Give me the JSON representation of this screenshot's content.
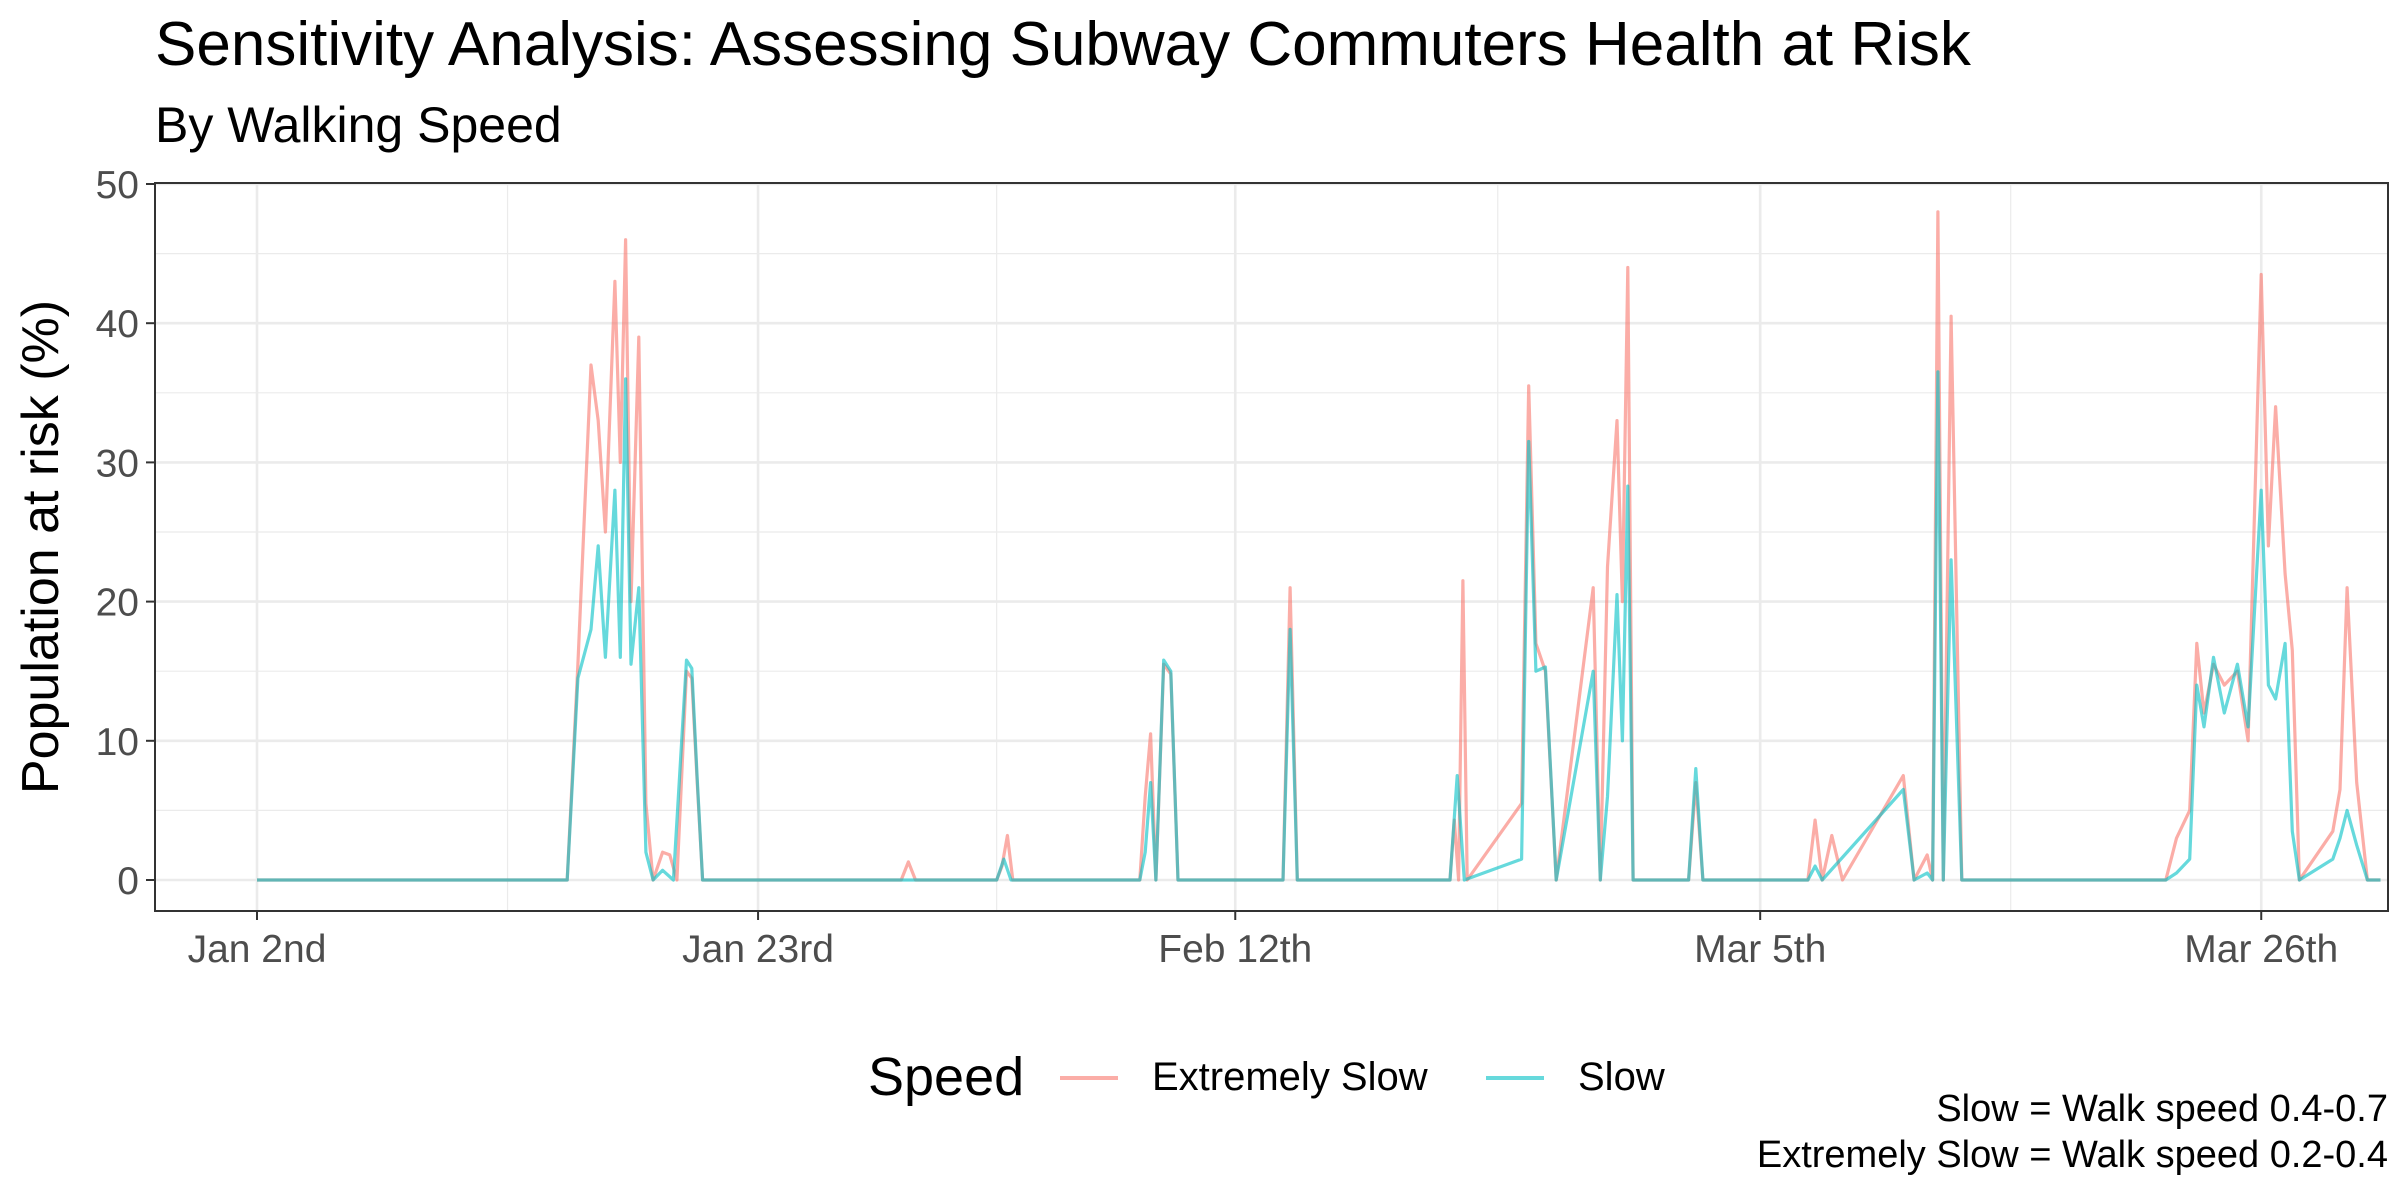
{
  "chart_data": {
    "type": "line",
    "title": "Sensitivity Analysis: Assessing Subway Commuters Health at Risk",
    "subtitle": "By Walking Speed",
    "xlabel": "",
    "ylabel": "Population at risk (%)",
    "x_tick_labels": [
      "Jan 2nd",
      "Jan 23rd",
      "Feb 12th",
      "Mar 5th",
      "Mar 26th"
    ],
    "y_tick_labels": [
      "0",
      "10",
      "20",
      "30",
      "40",
      "50"
    ],
    "ylim": [
      0,
      50
    ],
    "grid": true,
    "legend": {
      "title": "Speed",
      "position": "bottom"
    },
    "captions": [
      "Slow = Walk speed 0.4-0.7",
      "Extremely Slow = Walk speed 0.2-0.4"
    ],
    "colors": {
      "Extremely Slow": "#F8766D",
      "Slow": "#00BFC4"
    },
    "series": [
      {
        "name": "Extremely Slow",
        "points": [
          [
            "2024-01-02",
            0
          ],
          [
            "2024-01-15",
            0
          ],
          [
            "2024-01-15",
            15.5
          ],
          [
            "2024-01-16",
            37.0
          ],
          [
            "2024-01-16",
            33.0
          ],
          [
            "2024-01-16",
            25.0
          ],
          [
            "2024-01-17",
            43.0
          ],
          [
            "2024-01-17",
            30.0
          ],
          [
            "2024-01-17",
            46.0
          ],
          [
            "2024-01-17",
            20.0
          ],
          [
            "2024-01-18",
            39.0
          ],
          [
            "2024-01-18",
            5.5
          ],
          [
            "2024-01-18",
            0
          ],
          [
            "2024-01-19",
            2.0
          ],
          [
            "2024-01-19",
            1.8
          ],
          [
            "2024-01-19",
            0
          ],
          [
            "2024-01-20",
            15.0
          ],
          [
            "2024-01-20",
            14.5
          ],
          [
            "2024-01-20",
            7.0
          ],
          [
            "2024-01-20",
            0
          ],
          [
            "2024-01-29",
            0
          ],
          [
            "2024-01-29",
            1.3
          ],
          [
            "2024-01-29",
            0
          ],
          [
            "2024-02-02",
            0
          ],
          [
            "2024-02-02",
            1.0
          ],
          [
            "2024-02-02",
            3.2
          ],
          [
            "2024-02-02",
            0
          ],
          [
            "2024-02-08",
            0
          ],
          [
            "2024-02-08",
            6.0
          ],
          [
            "2024-02-08",
            10.5
          ],
          [
            "2024-02-08",
            0
          ],
          [
            "2024-02-09",
            15.5
          ],
          [
            "2024-02-09",
            14.8
          ],
          [
            "2024-02-09",
            0
          ],
          [
            "2024-02-14",
            0
          ],
          [
            "2024-02-14",
            21.0
          ],
          [
            "2024-02-14",
            0
          ],
          [
            "2024-02-21",
            0
          ],
          [
            "2024-02-21",
            4.3
          ],
          [
            "2024-02-21",
            0
          ],
          [
            "2024-02-21",
            21.5
          ],
          [
            "2024-02-21",
            0
          ],
          [
            "2024-02-24",
            5.5
          ],
          [
            "2024-02-24",
            35.5
          ],
          [
            "2024-02-24",
            17.0
          ],
          [
            "2024-02-25",
            15.0
          ],
          [
            "2024-02-25",
            0
          ],
          [
            "2024-02-27",
            21.0
          ],
          [
            "2024-02-27",
            0
          ],
          [
            "2024-02-27",
            22.5
          ],
          [
            "2024-02-28",
            33.0
          ],
          [
            "2024-02-28",
            20.0
          ],
          [
            "2024-02-28",
            44.0
          ],
          [
            "2024-02-28",
            0
          ],
          [
            "2024-03-02",
            0
          ],
          [
            "2024-03-02",
            7.0
          ],
          [
            "2024-03-02",
            0
          ],
          [
            "2024-03-07",
            0
          ],
          [
            "2024-03-07",
            4.3
          ],
          [
            "2024-03-07",
            0
          ],
          [
            "2024-03-08",
            3.2
          ],
          [
            "2024-03-08",
            0
          ],
          [
            "2024-03-11",
            7.5
          ],
          [
            "2024-03-11",
            0
          ],
          [
            "2024-03-12",
            1.8
          ],
          [
            "2024-03-12",
            0
          ],
          [
            "2024-03-12",
            48.0
          ],
          [
            "2024-03-12",
            0
          ],
          [
            "2024-03-13",
            40.5
          ],
          [
            "2024-03-13",
            0
          ],
          [
            "2024-03-22",
            0
          ],
          [
            "2024-03-22",
            3.0
          ],
          [
            "2024-03-23",
            5.0
          ],
          [
            "2024-03-23",
            17.0
          ],
          [
            "2024-03-23",
            12.0
          ],
          [
            "2024-03-24",
            15.5
          ],
          [
            "2024-03-24",
            14.0
          ],
          [
            "2024-03-25",
            15.0
          ],
          [
            "2024-03-25",
            10.0
          ],
          [
            "2024-03-26",
            43.5
          ],
          [
            "2024-03-26",
            24.0
          ],
          [
            "2024-03-26",
            34.0
          ],
          [
            "2024-03-27",
            22.0
          ],
          [
            "2024-03-27",
            16.5
          ],
          [
            "2024-03-27",
            0
          ],
          [
            "2024-03-29",
            3.5
          ],
          [
            "2024-03-29",
            6.5
          ],
          [
            "2024-03-29",
            21.0
          ],
          [
            "2024-03-30",
            7.0
          ],
          [
            "2024-03-30",
            0
          ],
          [
            "2024-03-31",
            0
          ]
        ]
      },
      {
        "name": "Slow",
        "points": [
          [
            "2024-01-02",
            0
          ],
          [
            "2024-01-15",
            0
          ],
          [
            "2024-01-15",
            14.5
          ],
          [
            "2024-01-16",
            18.0
          ],
          [
            "2024-01-16",
            24.0
          ],
          [
            "2024-01-16",
            16.0
          ],
          [
            "2024-01-17",
            28.0
          ],
          [
            "2024-01-17",
            16.0
          ],
          [
            "2024-01-17",
            36.0
          ],
          [
            "2024-01-17",
            15.5
          ],
          [
            "2024-01-18",
            21.0
          ],
          [
            "2024-01-18",
            2.0
          ],
          [
            "2024-01-18",
            0
          ],
          [
            "2024-01-19",
            0.7
          ],
          [
            "2024-01-19",
            0
          ],
          [
            "2024-01-20",
            15.8
          ],
          [
            "2024-01-20",
            15.2
          ],
          [
            "2024-01-20",
            7.3
          ],
          [
            "2024-01-20",
            0
          ],
          [
            "2024-02-02",
            0
          ],
          [
            "2024-02-02",
            1.5
          ],
          [
            "2024-02-02",
            0
          ],
          [
            "2024-02-08",
            0
          ],
          [
            "2024-02-08",
            2.0
          ],
          [
            "2024-02-08",
            7.0
          ],
          [
            "2024-02-08",
            0
          ],
          [
            "2024-02-09",
            15.8
          ],
          [
            "2024-02-09",
            15.0
          ],
          [
            "2024-02-09",
            0
          ],
          [
            "2024-02-14",
            0
          ],
          [
            "2024-02-14",
            18.0
          ],
          [
            "2024-02-14",
            0
          ],
          [
            "2024-02-21",
            0
          ],
          [
            "2024-02-21",
            7.5
          ],
          [
            "2024-02-21",
            0
          ],
          [
            "2024-02-24",
            1.5
          ],
          [
            "2024-02-24",
            31.5
          ],
          [
            "2024-02-24",
            15.0
          ],
          [
            "2024-02-25",
            15.3
          ],
          [
            "2024-02-25",
            0
          ],
          [
            "2024-02-27",
            15.0
          ],
          [
            "2024-02-27",
            0
          ],
          [
            "2024-02-27",
            6.0
          ],
          [
            "2024-02-28",
            20.5
          ],
          [
            "2024-02-28",
            10.0
          ],
          [
            "2024-02-28",
            28.3
          ],
          [
            "2024-02-28",
            0
          ],
          [
            "2024-03-02",
            0
          ],
          [
            "2024-03-02",
            8.0
          ],
          [
            "2024-03-02",
            0
          ],
          [
            "2024-03-07",
            0
          ],
          [
            "2024-03-07",
            1.0
          ],
          [
            "2024-03-07",
            0
          ],
          [
            "2024-03-11",
            6.5
          ],
          [
            "2024-03-11",
            0
          ],
          [
            "2024-03-12",
            0.5
          ],
          [
            "2024-03-12",
            0
          ],
          [
            "2024-03-12",
            36.5
          ],
          [
            "2024-03-12",
            0
          ],
          [
            "2024-03-13",
            23.0
          ],
          [
            "2024-03-13",
            0
          ],
          [
            "2024-03-22",
            0
          ],
          [
            "2024-03-22",
            0.5
          ],
          [
            "2024-03-23",
            1.5
          ],
          [
            "2024-03-23",
            14.0
          ],
          [
            "2024-03-23",
            11.0
          ],
          [
            "2024-03-24",
            16.0
          ],
          [
            "2024-03-24",
            12.0
          ],
          [
            "2024-03-25",
            15.5
          ],
          [
            "2024-03-25",
            11.0
          ],
          [
            "2024-03-26",
            28.0
          ],
          [
            "2024-03-26",
            14.0
          ],
          [
            "2024-03-26",
            13.0
          ],
          [
            "2024-03-27",
            17.0
          ],
          [
            "2024-03-27",
            3.5
          ],
          [
            "2024-03-27",
            0
          ],
          [
            "2024-03-29",
            1.5
          ],
          [
            "2024-03-29",
            3.0
          ],
          [
            "2024-03-29",
            5.0
          ],
          [
            "2024-03-30",
            2.5
          ],
          [
            "2024-03-30",
            0
          ],
          [
            "2024-03-31",
            0
          ]
        ]
      }
    ]
  }
}
